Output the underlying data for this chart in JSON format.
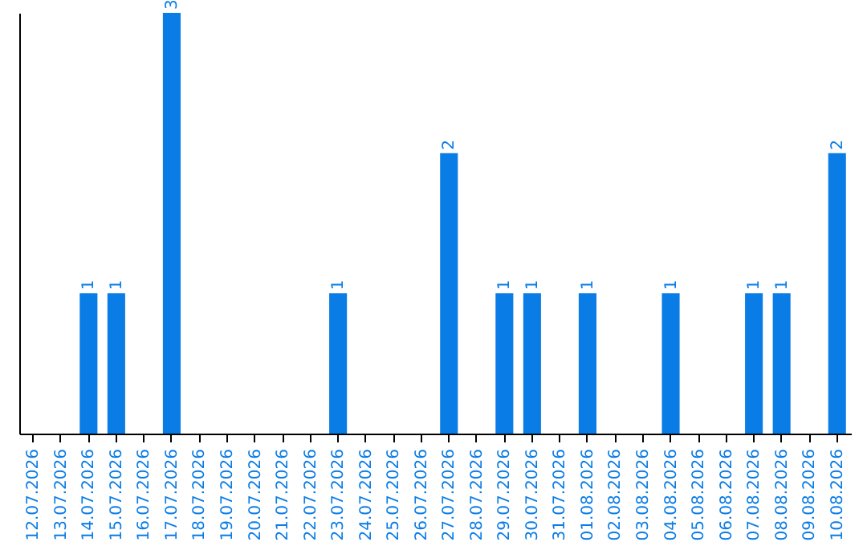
{
  "chart_data": {
    "type": "bar",
    "categories": [
      "12.07.2026",
      "13.07.2026",
      "14.07.2026",
      "15.07.2026",
      "16.07.2026",
      "17.07.2026",
      "18.07.2026",
      "19.07.2026",
      "20.07.2026",
      "21.07.2026",
      "22.07.2026",
      "23.07.2026",
      "24.07.2026",
      "25.07.2026",
      "26.07.2026",
      "27.07.2026",
      "28.07.2026",
      "29.07.2026",
      "30.07.2026",
      "31.07.2026",
      "01.08.2026",
      "02.08.2026",
      "03.08.2026",
      "04.08.2026",
      "05.08.2026",
      "06.08.2026",
      "07.08.2026",
      "08.08.2026",
      "09.08.2026",
      "10.08.2026"
    ],
    "values": [
      0,
      0,
      1,
      1,
      0,
      3,
      0,
      0,
      0,
      0,
      0,
      1,
      0,
      0,
      0,
      2,
      0,
      1,
      1,
      0,
      1,
      0,
      0,
      1,
      0,
      0,
      1,
      1,
      0,
      2
    ],
    "value_labels": [
      null,
      null,
      "1",
      "1",
      null,
      "3",
      null,
      null,
      null,
      null,
      null,
      "1",
      null,
      null,
      null,
      "2",
      null,
      "1",
      "1",
      null,
      "1",
      null,
      null,
      "1",
      null,
      null,
      "1",
      "1",
      null,
      "2"
    ],
    "color": "#0a7ce6",
    "tick_labels": "x"
  }
}
